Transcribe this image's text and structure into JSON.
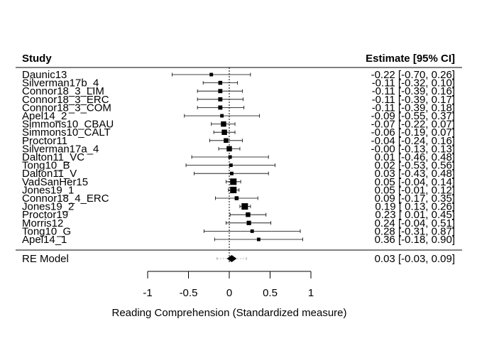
{
  "chart_data": {
    "type": "forest",
    "title": "",
    "header_left": "Study",
    "header_right": "Estimate [95% CI]",
    "xlabel": "Reading Comprehension (Standardized measure)",
    "xticks": [
      "-1",
      "-0.5",
      "0",
      "0.5",
      "1"
    ],
    "xtick_values": [
      -1,
      -0.5,
      0,
      0.5,
      1
    ],
    "xlim": [
      -1,
      1
    ],
    "reference_line": 0,
    "studies": [
      {
        "label": "Daunic13",
        "estimate": -0.22,
        "ci_low": -0.7,
        "ci_high": 0.26,
        "text": "-0.22 [-0.70, 0.26]",
        "weight": 0.6
      },
      {
        "label": "Silverman17b_4",
        "estimate": -0.11,
        "ci_low": -0.32,
        "ci_high": 0.1,
        "text": "-0.11 [-0.32, 0.10]",
        "weight": 0.8
      },
      {
        "label": "Connor18_3_LIM",
        "estimate": -0.11,
        "ci_low": -0.39,
        "ci_high": 0.16,
        "text": "-0.11 [-0.39, 0.16]",
        "weight": 0.9
      },
      {
        "label": "Connor18_3_ERC",
        "estimate": -0.11,
        "ci_low": -0.39,
        "ci_high": 0.17,
        "text": "-0.11 [-0.39, 0.17]",
        "weight": 0.9
      },
      {
        "label": "Connor18_3_COM",
        "estimate": -0.11,
        "ci_low": -0.39,
        "ci_high": 0.18,
        "text": "-0.11 [-0.39, 0.18]",
        "weight": 0.9
      },
      {
        "label": "Apel14_2",
        "estimate": -0.09,
        "ci_low": -0.55,
        "ci_high": 0.37,
        "text": "-0.09 [-0.55, 0.37]",
        "weight": 0.6
      },
      {
        "label": "Simmons10_CBAU",
        "estimate": -0.07,
        "ci_low": -0.22,
        "ci_high": 0.07,
        "text": "-0.07 [-0.22, 0.07]",
        "weight": 1.4
      },
      {
        "label": "Simmons10_CALT",
        "estimate": -0.06,
        "ci_low": -0.19,
        "ci_high": 0.07,
        "text": "-0.06 [-0.19, 0.07]",
        "weight": 1.4
      },
      {
        "label": "Proctor11",
        "estimate": -0.04,
        "ci_low": -0.24,
        "ci_high": 0.16,
        "text": "-0.04 [-0.24, 0.16]",
        "weight": 1.1
      },
      {
        "label": "Silverman17a_4",
        "estimate": -0.0,
        "ci_low": -0.13,
        "ci_high": 0.13,
        "text": "-0.00 [-0.13, 0.13]",
        "weight": 1.4
      },
      {
        "label": "Dalton11_VC",
        "estimate": 0.01,
        "ci_low": -0.46,
        "ci_high": 0.48,
        "text": "0.01 [-0.46, 0.48]",
        "weight": 0.6
      },
      {
        "label": "Tong10_B",
        "estimate": 0.02,
        "ci_low": -0.53,
        "ci_high": 0.56,
        "text": "0.02 [-0.53, 0.56]",
        "weight": 0.6
      },
      {
        "label": "Dalton11_V",
        "estimate": 0.03,
        "ci_low": -0.43,
        "ci_high": 0.48,
        "text": "0.03 [-0.43, 0.48]",
        "weight": 0.6
      },
      {
        "label": "VadSanHer15",
        "estimate": 0.05,
        "ci_low": -0.04,
        "ci_high": 0.14,
        "text": "0.05 [-0.04, 0.14]",
        "weight": 1.9
      },
      {
        "label": "Jones19_1",
        "estimate": 0.05,
        "ci_low": -0.01,
        "ci_high": 0.12,
        "text": "0.05 [-0.01, 0.12]",
        "weight": 1.9
      },
      {
        "label": "Connor18_4_ERC",
        "estimate": 0.09,
        "ci_low": -0.17,
        "ci_high": 0.35,
        "text": "0.09 [-0.17, 0.35]",
        "weight": 0.8
      },
      {
        "label": "Jones19_2",
        "estimate": 0.19,
        "ci_low": 0.13,
        "ci_high": 0.26,
        "text": "0.19 [ 0.13, 0.26]",
        "weight": 1.9
      },
      {
        "label": "Proctor19",
        "estimate": 0.23,
        "ci_low": 0.01,
        "ci_high": 0.45,
        "text": "0.23 [ 0.01, 0.45]",
        "weight": 1.1
      },
      {
        "label": "Morris12",
        "estimate": 0.24,
        "ci_low": -0.04,
        "ci_high": 0.51,
        "text": "0.24 [-0.04, 0.51]",
        "weight": 1.0
      },
      {
        "label": "Tong10_G",
        "estimate": 0.28,
        "ci_low": -0.31,
        "ci_high": 0.87,
        "text": "0.28 [-0.31, 0.87]",
        "weight": 0.6
      },
      {
        "label": "Apel14_1",
        "estimate": 0.36,
        "ci_low": -0.18,
        "ci_high": 0.9,
        "text": "0.36 [-0.18, 0.90]",
        "weight": 0.6
      }
    ],
    "summary": {
      "label": "RE Model",
      "estimate": 0.03,
      "ci_low": -0.03,
      "ci_high": 0.09,
      "pi_low": -0.15,
      "pi_high": 0.21,
      "text": "0.03 [-0.03, 0.09]"
    },
    "grid": false
  }
}
